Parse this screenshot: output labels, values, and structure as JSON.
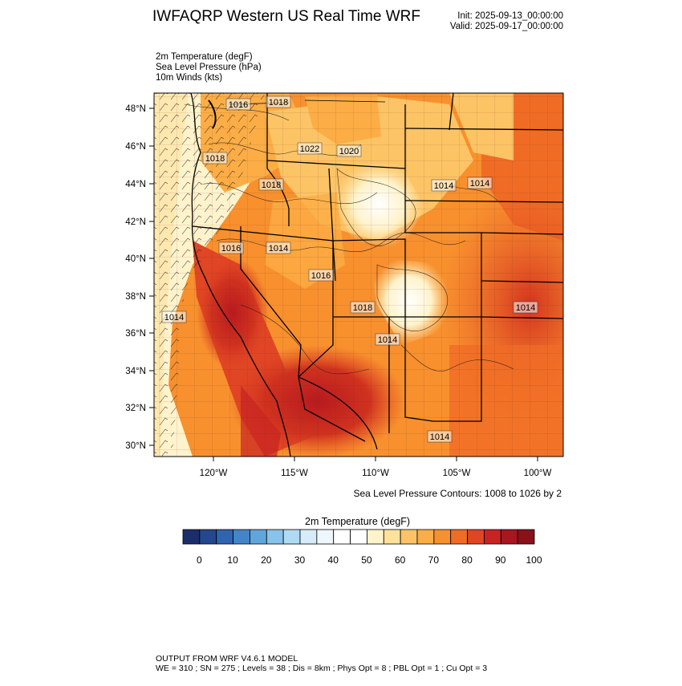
{
  "header": {
    "title": "IWFAQRP Western US Real Time WRF",
    "init": "Init: 2025-09-13_00:00:00",
    "valid": "Valid: 2025-09-17_00:00:00"
  },
  "fields": [
    "2m Temperature   (degF)",
    "Sea Level Pressure   (hPa)",
    "10m Winds   (kts)"
  ],
  "map": {
    "lat_labels": [
      "48°N",
      "46°N",
      "44°N",
      "42°N",
      "40°N",
      "38°N",
      "36°N",
      "34°N",
      "32°N",
      "30°N"
    ],
    "lon_labels": [
      "120°W",
      "115°W",
      "110°W",
      "105°W",
      "100°W"
    ],
    "pressure_labels": [
      "1016",
      "1018",
      "1018",
      "1018",
      "1022",
      "1020",
      "1016",
      "1014",
      "1016",
      "1014",
      "1018",
      "1014",
      "1014",
      "1014",
      "1014",
      "1014"
    ],
    "contour_note": "Sea Level Pressure Contours: 1008 to 1026 by 2"
  },
  "colorbar": {
    "title": "2m Temperature  (degF)",
    "colors": [
      "#1a2e6b",
      "#24478f",
      "#2f64b0",
      "#4285c9",
      "#5fa6dc",
      "#87c3eb",
      "#b0daf4",
      "#d6ecf9",
      "#eef7fd",
      "#ffffff",
      "#ffffff",
      "#fff3cc",
      "#ffe19a",
      "#fdc466",
      "#fcad45",
      "#f8902e",
      "#f06c25",
      "#e04524",
      "#c82322",
      "#a81620",
      "#8a111a"
    ],
    "tick_labels": [
      "0",
      "10",
      "20",
      "30",
      "40",
      "50",
      "60",
      "70",
      "80",
      "90",
      "100"
    ]
  },
  "footer": {
    "line1": "OUTPUT FROM WRF V4.6.1 MODEL",
    "line2": "WE = 310 ; SN = 275 ; Levels = 38 ; Dis = 8km ; Phys Opt = 8 ; PBL Opt = 1 ; Cu Opt = 3"
  }
}
